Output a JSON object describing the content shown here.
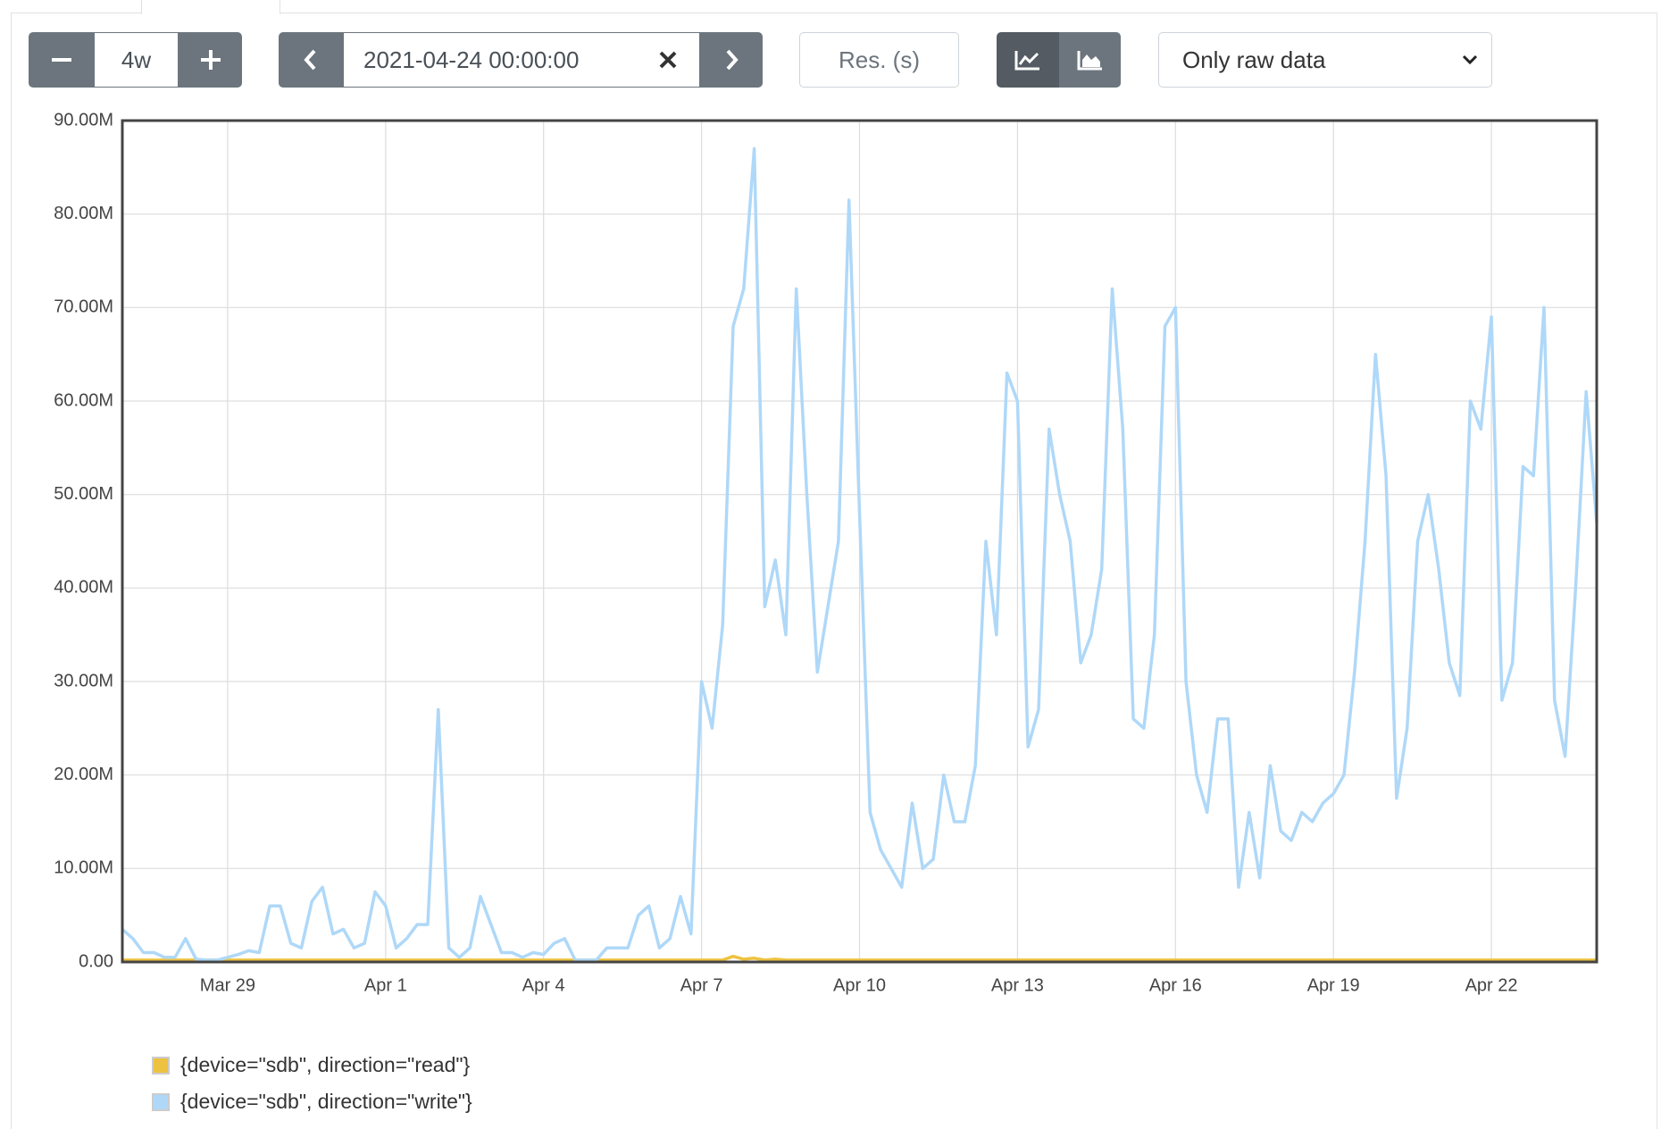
{
  "controls": {
    "range": "4w",
    "end_time": "2021-04-24 00:00:00",
    "resolution_placeholder": "Res. (s)",
    "data_mode": "Only raw data"
  },
  "chart_data": {
    "type": "line",
    "grid": true,
    "xlim": [
      0,
      28
    ],
    "xticks": [
      {
        "value": 2,
        "label": "Mar 29"
      },
      {
        "value": 5,
        "label": "Apr 1"
      },
      {
        "value": 8,
        "label": "Apr 4"
      },
      {
        "value": 11,
        "label": "Apr 7"
      },
      {
        "value": 14,
        "label": "Apr 10"
      },
      {
        "value": 17,
        "label": "Apr 13"
      },
      {
        "value": 20,
        "label": "Apr 16"
      },
      {
        "value": 23,
        "label": "Apr 19"
      },
      {
        "value": 26,
        "label": "Apr 22"
      }
    ],
    "ylim": [
      0,
      90000000.0
    ],
    "yticks": [
      {
        "value": 0,
        "label": "0.00"
      },
      {
        "value": 10000000.0,
        "label": "10.00M"
      },
      {
        "value": 20000000.0,
        "label": "20.00M"
      },
      {
        "value": 30000000.0,
        "label": "30.00M"
      },
      {
        "value": 40000000.0,
        "label": "40.00M"
      },
      {
        "value": 50000000.0,
        "label": "50.00M"
      },
      {
        "value": 60000000.0,
        "label": "60.00M"
      },
      {
        "value": 70000000.0,
        "label": "70.00M"
      },
      {
        "value": 80000000.0,
        "label": "80.00M"
      },
      {
        "value": 90000000.0,
        "label": "90.00M"
      }
    ],
    "x": [
      0,
      0.2,
      0.4,
      0.6,
      0.8,
      1,
      1.2,
      1.4,
      1.6,
      1.8,
      2,
      2.2,
      2.4,
      2.6,
      2.8,
      3,
      3.2,
      3.4,
      3.6,
      3.8,
      4,
      4.2,
      4.4,
      4.6,
      4.8,
      5,
      5.2,
      5.4,
      5.6,
      5.8,
      6,
      6.2,
      6.4,
      6.6,
      6.8,
      7,
      7.2,
      7.4,
      7.6,
      7.8,
      8,
      8.2,
      8.4,
      8.6,
      8.8,
      9,
      9.2,
      9.4,
      9.6,
      9.8,
      10,
      10.2,
      10.4,
      10.6,
      10.8,
      11,
      11.2,
      11.4,
      11.6,
      11.8,
      12,
      12.2,
      12.4,
      12.6,
      12.8,
      13,
      13.2,
      13.4,
      13.6,
      13.8,
      14,
      14.2,
      14.4,
      14.6,
      14.8,
      15,
      15.2,
      15.4,
      15.6,
      15.8,
      16,
      16.2,
      16.4,
      16.6,
      16.8,
      17,
      17.2,
      17.4,
      17.6,
      17.8,
      18,
      18.2,
      18.4,
      18.6,
      18.8,
      19,
      19.2,
      19.4,
      19.6,
      19.8,
      20,
      20.2,
      20.4,
      20.6,
      20.8,
      21,
      21.2,
      21.4,
      21.6,
      21.8,
      22,
      22.2,
      22.4,
      22.6,
      22.8,
      23,
      23.2,
      23.4,
      23.6,
      23.8,
      24,
      24.2,
      24.4,
      24.6,
      24.8,
      25,
      25.2,
      25.4,
      25.6,
      25.8,
      26,
      26.2,
      26.4,
      26.6,
      26.8,
      27,
      27.2,
      27.4,
      27.6,
      27.8,
      28
    ],
    "series": [
      {
        "name": "{device=\"sdb\", direction=\"read\"}",
        "color": "#edc240",
        "values": [
          200000.0,
          200000.0,
          200000.0,
          200000.0,
          200000.0,
          200000.0,
          200000.0,
          200000.0,
          200000.0,
          200000.0,
          200000.0,
          200000.0,
          200000.0,
          200000.0,
          200000.0,
          200000.0,
          200000.0,
          200000.0,
          200000.0,
          200000.0,
          200000.0,
          200000.0,
          200000.0,
          200000.0,
          200000.0,
          200000.0,
          200000.0,
          200000.0,
          200000.0,
          200000.0,
          200000.0,
          200000.0,
          200000.0,
          200000.0,
          200000.0,
          200000.0,
          200000.0,
          200000.0,
          200000.0,
          200000.0,
          200000.0,
          200000.0,
          200000.0,
          200000.0,
          200000.0,
          200000.0,
          200000.0,
          200000.0,
          200000.0,
          200000.0,
          200000.0,
          200000.0,
          200000.0,
          200000.0,
          200000.0,
          200000.0,
          200000.0,
          200000.0,
          600000.0,
          300000.0,
          400000.0,
          200000.0,
          300000.0,
          200000.0,
          200000.0,
          200000.0,
          200000.0,
          200000.0,
          200000.0,
          200000.0,
          200000.0,
          200000.0,
          200000.0,
          200000.0,
          200000.0,
          200000.0,
          200000.0,
          200000.0,
          200000.0,
          200000.0,
          200000.0,
          200000.0,
          200000.0,
          200000.0,
          200000.0,
          200000.0,
          200000.0,
          200000.0,
          200000.0,
          200000.0,
          200000.0,
          200000.0,
          200000.0,
          200000.0,
          200000.0,
          200000.0,
          200000.0,
          200000.0,
          200000.0,
          200000.0,
          200000.0,
          200000.0,
          200000.0,
          200000.0,
          200000.0,
          200000.0,
          200000.0,
          200000.0,
          200000.0,
          200000.0,
          200000.0,
          200000.0,
          200000.0,
          200000.0,
          200000.0,
          200000.0,
          200000.0,
          200000.0,
          200000.0,
          200000.0,
          200000.0,
          200000.0,
          200000.0,
          200000.0,
          200000.0,
          200000.0,
          200000.0,
          200000.0,
          200000.0,
          200000.0,
          200000.0,
          200000.0,
          200000.0,
          200000.0,
          200000.0,
          200000.0,
          200000.0,
          200000.0,
          200000.0,
          200000.0,
          200000.0
        ]
      },
      {
        "name": "{device=\"sdb\", direction=\"write\"}",
        "color": "#afd8f8",
        "values": [
          3500000.0,
          2500000.0,
          1000000.0,
          1000000.0,
          500000.0,
          500000.0,
          2500000.0,
          300000.0,
          200000.0,
          200000.0,
          500000.0,
          800000.0,
          1200000.0,
          1000000.0,
          6000000.0,
          6000000.0,
          2000000.0,
          1500000.0,
          6500000.0,
          8000000.0,
          3000000.0,
          3500000.0,
          1500000.0,
          2000000.0,
          7500000.0,
          6000000.0,
          1500000.0,
          2500000.0,
          4000000.0,
          4000000.0,
          27000000.0,
          1500000.0,
          500000.0,
          1500000.0,
          7000000.0,
          4000000.0,
          1000000.0,
          1000000.0,
          500000.0,
          1000000.0,
          800000.0,
          2000000.0,
          2500000.0,
          200000.0,
          200000.0,
          200000.0,
          1500000.0,
          1500000.0,
          1500000.0,
          5000000.0,
          6000000.0,
          1500000.0,
          2500000.0,
          7000000.0,
          3000000.0,
          30000000.0,
          25000000.0,
          36000000.0,
          68000000.0,
          72000000.0,
          87000000.0,
          38000000.0,
          43000000.0,
          35000000.0,
          72000000.0,
          50000000.0,
          31000000.0,
          38000000.0,
          45000000.0,
          81500000.0,
          48000000.0,
          16000000.0,
          12000000.0,
          10000000.0,
          8000000.0,
          17000000.0,
          10000000.0,
          11000000.0,
          20000000.0,
          15000000.0,
          15000000.0,
          21000000.0,
          45000000.0,
          35000000.0,
          63000000.0,
          60000000.0,
          23000000.0,
          27000000.0,
          57000000.0,
          50000000.0,
          45000000.0,
          32000000.0,
          35000000.0,
          42000000.0,
          72000000.0,
          57000000.0,
          26000000.0,
          25000000.0,
          35000000.0,
          68000000.0,
          70000000.0,
          30000000.0,
          20000000.0,
          16000000.0,
          26000000.0,
          26000000.0,
          8000000.0,
          16000000.0,
          9000000.0,
          21000000.0,
          14000000.0,
          13000000.0,
          16000000.0,
          15000000.0,
          17000000.0,
          18000000.0,
          20000000.0,
          31000000.0,
          45000000.0,
          65000000.0,
          52000000.0,
          17500000.0,
          25000000.0,
          45000000.0,
          50000000.0,
          42000000.0,
          32000000.0,
          28500000.0,
          60000000.0,
          57000000.0,
          69000000.0,
          28000000.0,
          32000000.0,
          53000000.0,
          52000000.0,
          70000000.0,
          28000000.0,
          22000000.0,
          40000000.0,
          61000000.0,
          47000000.0
        ]
      }
    ]
  }
}
